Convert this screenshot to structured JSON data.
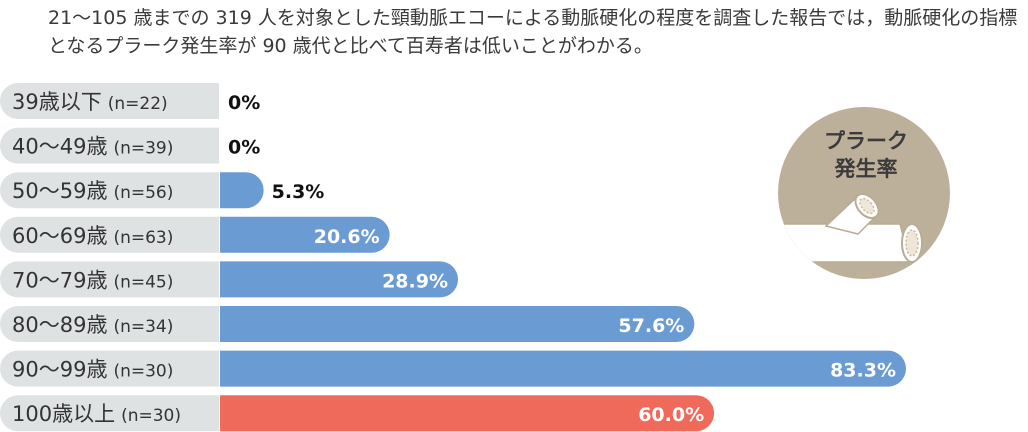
{
  "caption": "21～105 歳までの 319 人を対象とした頸動脈エコーによる動脈硬化の程度を調査した報告では，動脈硬化の指標となるプラーク発生率が 90 歳代と比べて百寿者は低いことがわかる。",
  "badge": {
    "line1": "プラーク",
    "line2": "発生率"
  },
  "colors": {
    "label_bg": "#dfe2e3",
    "bar": "#6b9bd3",
    "bar_highlight": "#f06a5c",
    "badge": "#bdb09a"
  },
  "chart_data": {
    "type": "bar",
    "orientation": "horizontal",
    "categories": [
      "39歳以下",
      "40～49歳",
      "50～59歳",
      "60～69歳",
      "70～79歳",
      "80～89歳",
      "90～99歳",
      "100歳以上"
    ],
    "sample_sizes": [
      "(n=22)",
      "(n=39)",
      "(n=56)",
      "(n=63)",
      "(n=45)",
      "(n=34)",
      "(n=30)",
      "(n=30)"
    ],
    "values": [
      0,
      0,
      5.3,
      20.6,
      28.9,
      57.6,
      83.3,
      60.0
    ],
    "value_labels": [
      "0%",
      "0%",
      "5.3%",
      "20.6%",
      "28.9%",
      "57.6%",
      "83.3%",
      "60.0%"
    ],
    "highlight_index": 7,
    "xlim": [
      0,
      100
    ],
    "grid": false,
    "legend": "none"
  }
}
